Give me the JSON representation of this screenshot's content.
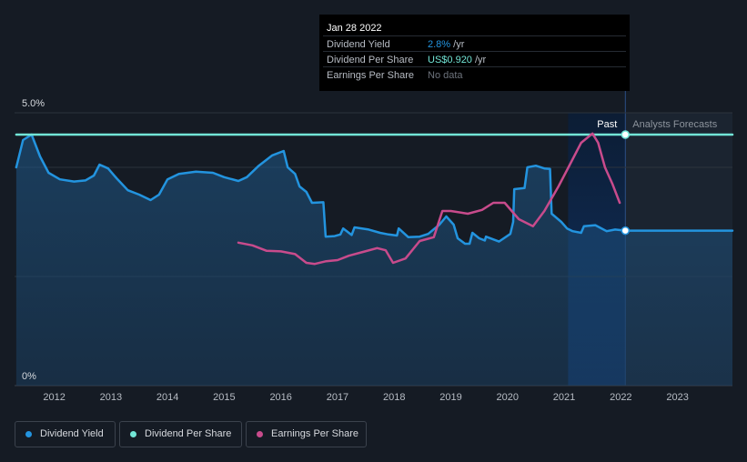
{
  "chart_data": {
    "type": "line",
    "y_tick_labels": [
      {
        "value": 5.0,
        "label": "5.0%"
      },
      {
        "value": 0,
        "label": "0%"
      }
    ],
    "ylim": [
      0,
      5.0
    ],
    "xlim": [
      2011.3,
      2023.97
    ],
    "x_tick_labels": [
      "2012",
      "2013",
      "2014",
      "2015",
      "2016",
      "2017",
      "2018",
      "2019",
      "2020",
      "2021",
      "2022",
      "2023"
    ],
    "grid": true,
    "past_label": "Past",
    "forecast_label": "Analysts Forecasts",
    "highlight_start": 2021.07,
    "divider": 2022.08,
    "series": [
      {
        "name": "Dividend Yield",
        "color": "#2394df",
        "area": true,
        "points": [
          [
            2011.33,
            4.0
          ],
          [
            2011.45,
            4.5
          ],
          [
            2011.6,
            4.6
          ],
          [
            2011.75,
            4.2
          ],
          [
            2011.9,
            3.9
          ],
          [
            2012.1,
            3.78
          ],
          [
            2012.35,
            3.74
          ],
          [
            2012.55,
            3.76
          ],
          [
            2012.7,
            3.85
          ],
          [
            2012.8,
            4.05
          ],
          [
            2012.95,
            3.98
          ],
          [
            2013.1,
            3.8
          ],
          [
            2013.3,
            3.58
          ],
          [
            2013.5,
            3.5
          ],
          [
            2013.7,
            3.4
          ],
          [
            2013.85,
            3.5
          ],
          [
            2014.0,
            3.78
          ],
          [
            2014.2,
            3.88
          ],
          [
            2014.5,
            3.92
          ],
          [
            2014.8,
            3.9
          ],
          [
            2015.0,
            3.82
          ],
          [
            2015.25,
            3.75
          ],
          [
            2015.4,
            3.82
          ],
          [
            2015.6,
            4.02
          ],
          [
            2015.85,
            4.22
          ],
          [
            2016.05,
            4.3
          ],
          [
            2016.12,
            4.0
          ],
          [
            2016.25,
            3.88
          ],
          [
            2016.33,
            3.65
          ],
          [
            2016.45,
            3.55
          ],
          [
            2016.55,
            3.35
          ],
          [
            2016.75,
            3.36
          ],
          [
            2016.79,
            2.73
          ],
          [
            2016.95,
            2.74
          ],
          [
            2017.05,
            2.77
          ],
          [
            2017.1,
            2.88
          ],
          [
            2017.25,
            2.76
          ],
          [
            2017.3,
            2.9
          ],
          [
            2017.55,
            2.86
          ],
          [
            2017.75,
            2.8
          ],
          [
            2017.9,
            2.77
          ],
          [
            2018.05,
            2.75
          ],
          [
            2018.08,
            2.88
          ],
          [
            2018.25,
            2.72
          ],
          [
            2018.45,
            2.73
          ],
          [
            2018.6,
            2.78
          ],
          [
            2018.8,
            2.95
          ],
          [
            2018.92,
            3.1
          ],
          [
            2019.05,
            2.95
          ],
          [
            2019.12,
            2.7
          ],
          [
            2019.25,
            2.6
          ],
          [
            2019.33,
            2.6
          ],
          [
            2019.38,
            2.8
          ],
          [
            2019.5,
            2.7
          ],
          [
            2019.6,
            2.66
          ],
          [
            2019.62,
            2.73
          ],
          [
            2019.85,
            2.64
          ],
          [
            2020.05,
            2.78
          ],
          [
            2020.1,
            3.0
          ],
          [
            2020.12,
            3.6
          ],
          [
            2020.3,
            3.62
          ],
          [
            2020.35,
            4.0
          ],
          [
            2020.5,
            4.03
          ],
          [
            2020.65,
            3.98
          ],
          [
            2020.75,
            3.97
          ],
          [
            2020.78,
            3.15
          ],
          [
            2020.95,
            3.0
          ],
          [
            2021.05,
            2.88
          ],
          [
            2021.15,
            2.83
          ],
          [
            2021.3,
            2.8
          ],
          [
            2021.35,
            2.92
          ],
          [
            2021.55,
            2.94
          ],
          [
            2021.75,
            2.83
          ],
          [
            2021.9,
            2.86
          ],
          [
            2022.08,
            2.84
          ],
          [
            2023.97,
            2.84
          ]
        ]
      },
      {
        "name": "Dividend Per Share",
        "color": "#72e5d6",
        "area": false,
        "points": [
          [
            2011.33,
            4.6
          ],
          [
            2023.97,
            4.6
          ]
        ]
      },
      {
        "name": "Earnings Per Share",
        "color": "#c84b8c",
        "area": false,
        "points": [
          [
            2015.25,
            2.62
          ],
          [
            2015.5,
            2.57
          ],
          [
            2015.75,
            2.47
          ],
          [
            2016.0,
            2.46
          ],
          [
            2016.25,
            2.41
          ],
          [
            2016.45,
            2.25
          ],
          [
            2016.6,
            2.23
          ],
          [
            2016.8,
            2.28
          ],
          [
            2017.0,
            2.3
          ],
          [
            2017.2,
            2.38
          ],
          [
            2017.45,
            2.45
          ],
          [
            2017.7,
            2.52
          ],
          [
            2017.85,
            2.48
          ],
          [
            2017.98,
            2.25
          ],
          [
            2018.2,
            2.33
          ],
          [
            2018.45,
            2.65
          ],
          [
            2018.7,
            2.72
          ],
          [
            2018.85,
            3.2
          ],
          [
            2019.0,
            3.2
          ],
          [
            2019.3,
            3.15
          ],
          [
            2019.55,
            3.22
          ],
          [
            2019.75,
            3.35
          ],
          [
            2019.95,
            3.35
          ],
          [
            2020.2,
            3.05
          ],
          [
            2020.45,
            2.92
          ],
          [
            2020.65,
            3.2
          ],
          [
            2020.9,
            3.65
          ],
          [
            2021.05,
            3.95
          ],
          [
            2021.3,
            4.45
          ],
          [
            2021.5,
            4.62
          ],
          [
            2021.6,
            4.45
          ],
          [
            2021.72,
            4.0
          ],
          [
            2021.85,
            3.7
          ],
          [
            2021.98,
            3.35
          ]
        ]
      }
    ],
    "tooltip": {
      "date": "Jan 28 2022",
      "rows": [
        {
          "label": "Dividend Yield",
          "value": "2.8%",
          "unit": "/yr",
          "color": "#2394df"
        },
        {
          "label": "Dividend Per Share",
          "value": "US$0.920",
          "unit": "/yr",
          "color": "#72e5d6"
        },
        {
          "label": "Earnings Per Share",
          "value": "No data",
          "unit": "",
          "color": "#6d737c"
        }
      ]
    },
    "legend": [
      {
        "label": "Dividend Yield",
        "color": "#2394df"
      },
      {
        "label": "Dividend Per Share",
        "color": "#72e5d6"
      },
      {
        "label": "Earnings Per Share",
        "color": "#c84b8c"
      }
    ]
  }
}
